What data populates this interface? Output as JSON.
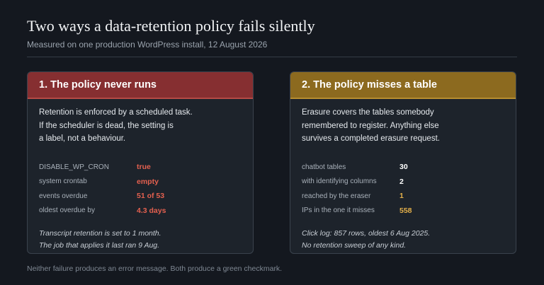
{
  "header": {
    "title": "Two ways a data-retention policy fails silently",
    "subtitle": "Measured on one production WordPress install, 12 August 2026"
  },
  "cards": [
    {
      "title": "1. The policy never runs",
      "accent": "#862f31",
      "lines": [
        "Retention is enforced by a scheduled task.",
        "If the scheduler is dead, the setting is",
        "a label, not a behaviour."
      ],
      "stats": [
        {
          "label": "DISABLE_WP_CRON",
          "value": "true"
        },
        {
          "label": "system crontab",
          "value": "empty"
        },
        {
          "label": "events overdue",
          "value": "51 of 53"
        },
        {
          "label": "oldest overdue by",
          "value": "4.3 days"
        }
      ],
      "note": [
        "Transcript retention is set to 1 month.",
        "The job that applies it last ran 9 Aug."
      ]
    },
    {
      "title": "2. The policy misses a table",
      "accent": "#8c6a1f",
      "lines": [
        "Erasure covers the tables somebody",
        "remembered to register. Anything else",
        "survives a completed erasure request."
      ],
      "stats": [
        {
          "label": "chatbot tables",
          "value": "30"
        },
        {
          "label": "with identifying columns",
          "value": "2"
        },
        {
          "label": "reached by the eraser",
          "value": "1"
        },
        {
          "label": "IPs in the one it misses",
          "value": "558"
        }
      ],
      "note": [
        "Click log: 857 rows, oldest 6 Aug 2025.",
        "No retention sweep of any kind."
      ]
    }
  ],
  "footer": "Neither failure produces an error message. Both produce a green checkmark."
}
